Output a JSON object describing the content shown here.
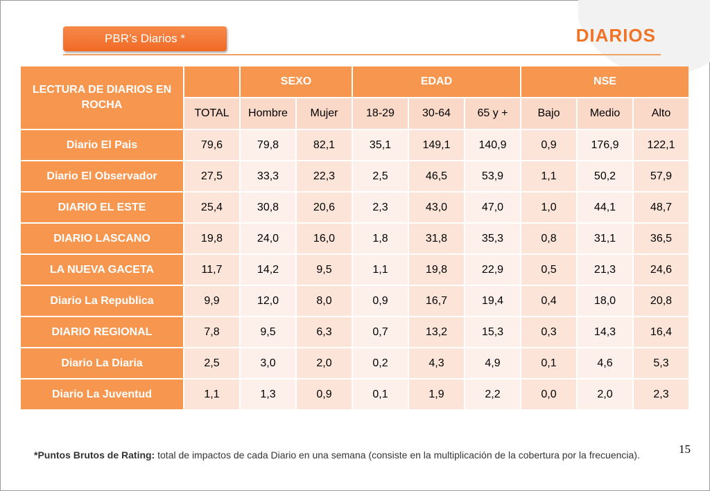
{
  "header": {
    "tag_label": "PBR’s Diarios  *",
    "title": "DIARIOS"
  },
  "table": {
    "corner_label": "LECTURA DE DIARIOS EN ROCHA",
    "groups": [
      "SEXO",
      "EDAD",
      "NSE"
    ],
    "columns": [
      "TOTAL",
      "Hombre",
      "Mujer",
      "18-29",
      "30-64",
      "65 y +",
      "Bajo",
      "Medio",
      "Alto"
    ],
    "rows": [
      {
        "label": "Diario El Pais",
        "values": [
          "79,6",
          "79,8",
          "82,1",
          "35,1",
          "149,1",
          "140,9",
          "0,9",
          "176,9",
          "122,1"
        ]
      },
      {
        "label": "Diario El Observador",
        "values": [
          "27,5",
          "33,3",
          "22,3",
          "2,5",
          "46,5",
          "53,9",
          "1,1",
          "50,2",
          "57,9"
        ]
      },
      {
        "label": "DIARIO EL ESTE",
        "values": [
          "25,4",
          "30,8",
          "20,6",
          "2,3",
          "43,0",
          "47,0",
          "1,0",
          "44,1",
          "48,7"
        ]
      },
      {
        "label": "DIARIO LASCANO",
        "values": [
          "19,8",
          "24,0",
          "16,0",
          "1,8",
          "31,8",
          "35,3",
          "0,8",
          "31,1",
          "36,5"
        ]
      },
      {
        "label": "LA NUEVA GACETA",
        "values": [
          "11,7",
          "14,2",
          "9,5",
          "1,1",
          "19,8",
          "22,9",
          "0,5",
          "21,3",
          "24,6"
        ]
      },
      {
        "label": "Diario La Republica",
        "values": [
          "9,9",
          "12,0",
          "8,0",
          "0,9",
          "16,7",
          "19,4",
          "0,4",
          "18,0",
          "20,8"
        ]
      },
      {
        "label": "DIARIO REGIONAL",
        "values": [
          "7,8",
          "9,5",
          "6,3",
          "0,7",
          "13,2",
          "15,3",
          "0,3",
          "14,3",
          "16,4"
        ]
      },
      {
        "label": "Diario La Diaria",
        "values": [
          "2,5",
          "3,0",
          "2,0",
          "0,2",
          "4,3",
          "4,9",
          "0,1",
          "4,6",
          "5,3"
        ]
      },
      {
        "label": "Diario La Juventud",
        "values": [
          "1,1",
          "1,3",
          "0,9",
          "0,1",
          "1,9",
          "2,2",
          "0,0",
          "2,0",
          "2,3"
        ]
      }
    ]
  },
  "footer": {
    "page_number": "15",
    "footnote_bold": "*Puntos Brutos de Rating:",
    "footnote_text": " total de impactos de cada Diario en una semana (consiste en la multiplicación de la cobertura por la frecuencia)."
  },
  "colors": {
    "accent": "#f07428",
    "header_fill": "#f7964f",
    "cell_fill_light": "#fdf0ea",
    "cell_fill_dark": "#fce4d8"
  }
}
